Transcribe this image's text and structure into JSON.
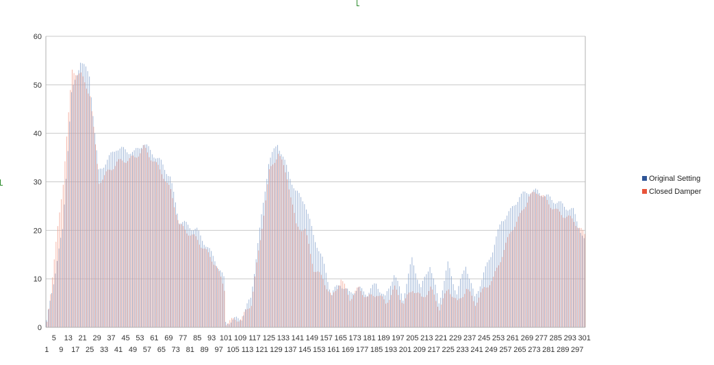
{
  "chart_data": {
    "type": "bar",
    "title": "",
    "xlabel": "",
    "ylabel": "",
    "ylim": [
      0,
      60
    ],
    "yticks": [
      0,
      10,
      20,
      30,
      40,
      50,
      60
    ],
    "grid": true,
    "legend_position": "right",
    "x_count": 301,
    "x_tick_labels_row1": [
      "5",
      "13",
      "21",
      "29",
      "37",
      "45",
      "53",
      "61",
      "69",
      "77",
      "85",
      "93",
      "101",
      "109",
      "117",
      "125",
      "133",
      "141",
      "149",
      "157",
      "165",
      "173",
      "181",
      "189",
      "197",
      "205",
      "213",
      "221",
      "229",
      "237",
      "245",
      "253",
      "261",
      "269",
      "277",
      "285",
      "293",
      "301"
    ],
    "x_tick_labels_row2": [
      "1",
      "9",
      "17",
      "25",
      "33",
      "41",
      "49",
      "57",
      "65",
      "73",
      "81",
      "89",
      "97",
      "105",
      "113",
      "121",
      "129",
      "137",
      "145",
      "153",
      "161",
      "169",
      "177",
      "185",
      "193",
      "201",
      "209",
      "217",
      "225",
      "233",
      "241",
      "249",
      "257",
      "265",
      "273",
      "281",
      "289",
      "297"
    ],
    "x_keys": [
      1,
      10,
      15,
      20,
      25,
      30,
      40,
      50,
      55,
      65,
      70,
      75,
      85,
      95,
      100,
      101,
      110,
      115,
      120,
      125,
      130,
      135,
      140,
      145,
      150,
      155,
      160,
      165,
      170,
      175,
      180,
      185,
      190,
      195,
      200,
      205,
      210,
      215,
      220,
      225,
      230,
      235,
      240,
      245,
      250,
      255,
      260,
      265,
      270,
      275,
      280,
      285,
      290,
      295,
      301
    ],
    "series": [
      {
        "name": "Original Setting",
        "color": "#2f5597",
        "values": [
          1,
          20,
          48,
          55,
          52,
          32,
          37,
          36,
          38,
          34,
          31,
          22,
          20,
          14,
          10,
          1,
          2,
          6,
          20,
          34,
          38,
          33,
          28,
          26,
          19,
          14,
          7,
          9,
          7,
          8,
          7,
          9,
          6,
          11,
          6,
          14,
          8,
          13,
          5,
          13,
          7,
          13,
          6,
          11,
          16,
          22,
          24,
          27,
          28,
          28,
          27,
          26,
          25,
          24,
          18
        ]
      },
      {
        "name": "Closed Damper",
        "color": "#e8533a",
        "values": [
          1,
          30,
          53,
          52,
          48,
          30,
          34,
          35,
          37,
          32,
          28,
          21,
          18,
          13,
          8,
          1,
          2,
          5,
          18,
          32,
          36,
          31,
          21,
          20,
          12,
          10,
          6,
          10,
          6,
          8,
          6,
          7,
          5,
          8,
          5,
          8,
          6,
          8,
          4,
          8,
          5,
          8,
          5,
          8,
          10,
          15,
          20,
          23,
          27,
          28,
          26,
          24,
          23,
          22,
          19
        ]
      }
    ]
  }
}
